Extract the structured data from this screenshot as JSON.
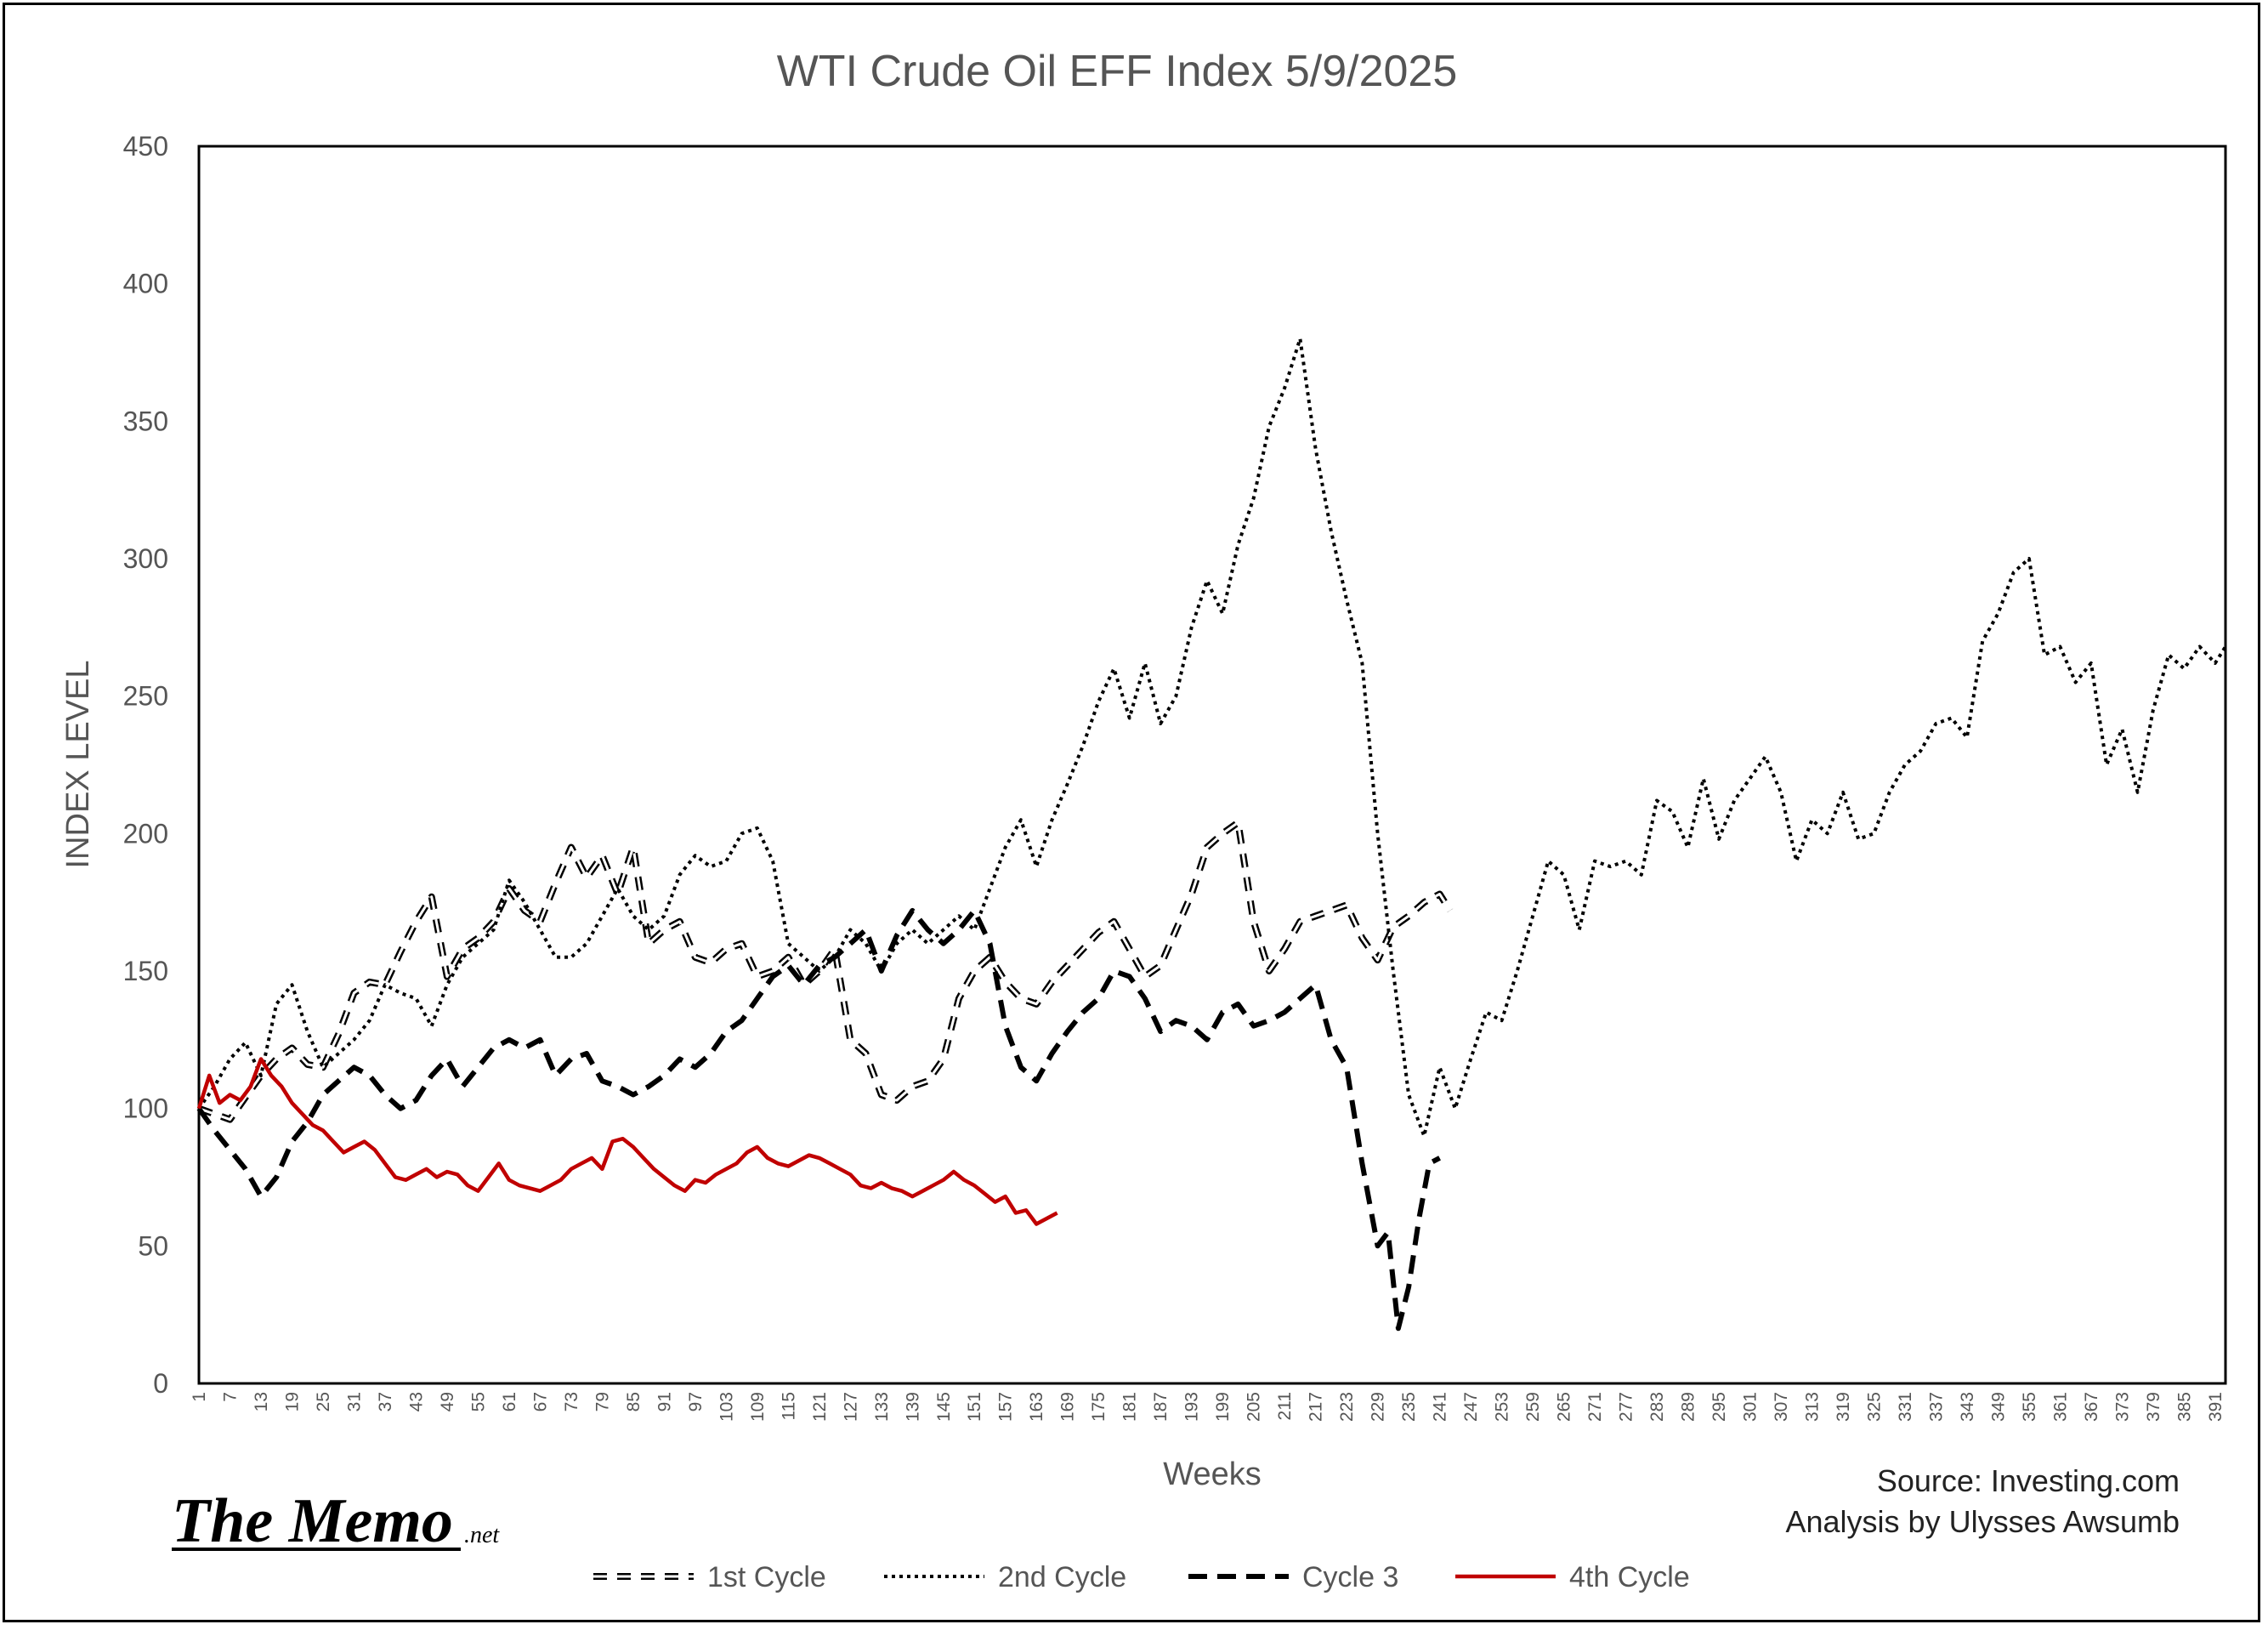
{
  "chart_data": {
    "type": "line",
    "title": "WTI Crude Oil EFF Index 5/9/2025",
    "xlabel": "Weeks",
    "ylabel": "INDEX LEVEL",
    "ylim": [
      0,
      450
    ],
    "xlim": [
      1,
      393
    ],
    "yticks": [
      "0",
      "50",
      "100",
      "150",
      "200",
      "250",
      "300",
      "350",
      "400",
      "450"
    ],
    "xticks": [
      "1",
      "7",
      "13",
      "19",
      "25",
      "31",
      "37",
      "43",
      "49",
      "55",
      "61",
      "67",
      "73",
      "79",
      "85",
      "91",
      "97",
      "103",
      "109",
      "115",
      "121",
      "127",
      "133",
      "139",
      "145",
      "151",
      "157",
      "163",
      "169",
      "175",
      "181",
      "187",
      "193",
      "199",
      "205",
      "211",
      "217",
      "223",
      "229",
      "235",
      "241",
      "247",
      "253",
      "259",
      "265",
      "271",
      "277",
      "283",
      "289",
      "295",
      "301",
      "307",
      "313",
      "319",
      "325",
      "331",
      "337",
      "343",
      "349",
      "355",
      "361",
      "367",
      "373",
      "379",
      "385",
      "391"
    ],
    "legend_position": "bottom",
    "grid": false,
    "source": "Source: Investing.com",
    "analysis": "Analysis by Ulysses Awsumb",
    "logo": {
      "main": "The Memo",
      "suffix": ".net"
    },
    "series": [
      {
        "name": "1st Cycle",
        "style": "dash-hollow",
        "color": "#000000",
        "x": [
          1,
          4,
          7,
          10,
          13,
          16,
          19,
          22,
          25,
          28,
          31,
          34,
          37,
          40,
          43,
          46,
          49,
          52,
          55,
          58,
          61,
          64,
          67,
          70,
          73,
          76,
          79,
          82,
          85,
          88,
          91,
          94,
          97,
          100,
          103,
          106,
          109,
          112,
          115,
          118,
          121,
          124,
          127,
          130,
          133,
          136,
          139,
          142,
          145,
          148,
          151,
          154,
          157,
          160,
          163,
          166,
          169,
          172,
          175,
          178,
          181,
          184,
          187,
          190,
          193,
          196,
          199,
          202,
          205,
          208,
          211,
          214,
          217,
          220,
          223,
          226,
          229,
          232,
          235,
          238,
          241,
          243
        ],
        "y": [
          100,
          98,
          96,
          104,
          112,
          118,
          122,
          116,
          115,
          127,
          142,
          146,
          145,
          157,
          168,
          177,
          148,
          158,
          162,
          168,
          180,
          172,
          168,
          182,
          195,
          184,
          192,
          178,
          195,
          160,
          165,
          168,
          155,
          153,
          158,
          160,
          148,
          150,
          155,
          145,
          150,
          158,
          125,
          120,
          105,
          103,
          108,
          110,
          118,
          140,
          150,
          155,
          146,
          140,
          138,
          146,
          152,
          158,
          164,
          168,
          158,
          148,
          152,
          165,
          178,
          195,
          200,
          204,
          168,
          150,
          158,
          168,
          170,
          172,
          174,
          162,
          154,
          166,
          170,
          175,
          178,
          172
        ]
      },
      {
        "name": "2nd Cycle",
        "style": "dotted",
        "color": "#000000",
        "x": [
          1,
          4,
          7,
          10,
          13,
          16,
          19,
          22,
          25,
          28,
          31,
          34,
          37,
          40,
          43,
          46,
          49,
          52,
          55,
          58,
          61,
          64,
          67,
          70,
          73,
          76,
          79,
          82,
          85,
          88,
          91,
          94,
          97,
          100,
          103,
          106,
          109,
          112,
          115,
          118,
          121,
          124,
          127,
          130,
          133,
          136,
          139,
          142,
          145,
          148,
          151,
          154,
          157,
          160,
          163,
          166,
          169,
          172,
          175,
          178,
          181,
          184,
          187,
          190,
          193,
          196,
          199,
          202,
          205,
          208,
          211,
          214,
          217,
          220,
          223,
          226,
          229,
          232,
          235,
          238,
          241,
          244,
          247,
          250,
          253,
          256,
          259,
          262,
          265,
          268,
          271,
          274,
          277,
          280,
          283,
          286,
          289,
          292,
          295,
          298,
          301,
          304,
          307,
          310,
          313,
          316,
          319,
          322,
          325,
          328,
          331,
          334,
          337,
          340,
          343,
          346,
          349,
          352,
          355,
          358,
          361,
          364,
          367,
          370,
          373,
          376,
          379,
          382,
          385,
          388,
          391,
          393
        ],
        "y": [
          100,
          108,
          118,
          124,
          112,
          138,
          145,
          128,
          115,
          120,
          125,
          132,
          145,
          142,
          140,
          130,
          145,
          155,
          160,
          165,
          183,
          175,
          165,
          155,
          155,
          160,
          170,
          180,
          170,
          165,
          170,
          185,
          192,
          188,
          190,
          200,
          202,
          190,
          160,
          155,
          150,
          155,
          165,
          160,
          150,
          160,
          165,
          160,
          165,
          170,
          165,
          180,
          195,
          205,
          188,
          205,
          218,
          232,
          248,
          260,
          242,
          262,
          240,
          250,
          275,
          292,
          280,
          305,
          322,
          348,
          362,
          380,
          340,
          310,
          285,
          262,
          200,
          150,
          105,
          90,
          115,
          100,
          118,
          135,
          132,
          150,
          170,
          190,
          185,
          165,
          190,
          188,
          190,
          185,
          212,
          208,
          195,
          220,
          198,
          212,
          220,
          228,
          215,
          190,
          205,
          200,
          215,
          198,
          200,
          215,
          225,
          230,
          240,
          242,
          235,
          270,
          280,
          295,
          300,
          265,
          268,
          255,
          262,
          225,
          238,
          215,
          245,
          265,
          260,
          268,
          262,
          268
        ]
      },
      {
        "name": "Cycle 3",
        "style": "dashed",
        "color": "#000000",
        "x": [
          1,
          4,
          7,
          10,
          13,
          16,
          19,
          22,
          25,
          28,
          31,
          34,
          37,
          40,
          43,
          46,
          49,
          52,
          55,
          58,
          61,
          64,
          67,
          70,
          73,
          76,
          79,
          82,
          85,
          88,
          91,
          94,
          97,
          100,
          103,
          106,
          109,
          112,
          115,
          118,
          121,
          124,
          127,
          130,
          133,
          136,
          139,
          142,
          145,
          148,
          151,
          154,
          157,
          160,
          163,
          166,
          169,
          172,
          175,
          178,
          181,
          184,
          187,
          190,
          193,
          196,
          199,
          202,
          205,
          208,
          211,
          214,
          217,
          220,
          223,
          226,
          229,
          231,
          233,
          235,
          237,
          239,
          241
        ],
        "y": [
          100,
          92,
          85,
          78,
          68,
          75,
          88,
          95,
          105,
          110,
          115,
          112,
          105,
          100,
          103,
          112,
          118,
          108,
          115,
          122,
          125,
          122,
          125,
          112,
          118,
          120,
          110,
          108,
          105,
          108,
          112,
          118,
          115,
          120,
          128,
          132,
          140,
          148,
          152,
          145,
          152,
          155,
          160,
          165,
          150,
          163,
          172,
          165,
          160,
          165,
          172,
          160,
          130,
          115,
          110,
          120,
          128,
          135,
          140,
          150,
          148,
          140,
          128,
          132,
          130,
          125,
          135,
          138,
          130,
          132,
          135,
          140,
          145,
          125,
          115,
          80,
          50,
          55,
          20,
          35,
          60,
          80,
          82
        ]
      },
      {
        "name": "4th Cycle",
        "style": "solid",
        "color": "#c00000",
        "x": [
          1,
          3,
          5,
          7,
          9,
          11,
          13,
          15,
          17,
          19,
          21,
          23,
          25,
          27,
          29,
          31,
          33,
          35,
          37,
          39,
          41,
          43,
          45,
          47,
          49,
          51,
          53,
          55,
          57,
          59,
          61,
          63,
          65,
          67,
          69,
          71,
          73,
          75,
          77,
          79,
          81,
          83,
          85,
          87,
          89,
          91,
          93,
          95,
          97,
          99,
          101,
          103,
          105,
          107,
          109,
          111,
          113,
          115,
          117,
          119,
          121,
          123,
          125,
          127,
          129,
          131,
          133,
          135,
          137,
          139,
          141,
          143,
          145,
          147,
          149,
          151,
          153,
          155,
          157,
          159,
          161,
          163,
          165,
          167
        ],
        "y": [
          100,
          112,
          102,
          105,
          103,
          108,
          118,
          112,
          108,
          102,
          98,
          94,
          92,
          88,
          84,
          86,
          88,
          85,
          80,
          75,
          74,
          76,
          78,
          75,
          77,
          76,
          72,
          70,
          75,
          80,
          74,
          72,
          71,
          70,
          72,
          74,
          78,
          80,
          82,
          78,
          88,
          89,
          86,
          82,
          78,
          75,
          72,
          70,
          74,
          73,
          76,
          78,
          80,
          84,
          86,
          82,
          80,
          79,
          81,
          83,
          82,
          80,
          78,
          76,
          72,
          71,
          73,
          71,
          70,
          68,
          70,
          72,
          74,
          77,
          74,
          72,
          69,
          66,
          68,
          62,
          63,
          58,
          60,
          62
        ]
      }
    ]
  }
}
